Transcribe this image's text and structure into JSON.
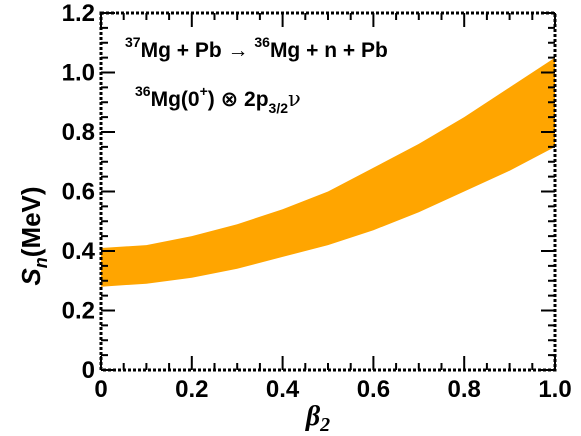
{
  "chart_data": {
    "type": "area",
    "title": "",
    "xlabel": "β",
    "xlabel_sub": "2",
    "ylabel_main": "S",
    "ylabel_sub": "n",
    "ylabel_unit": "(MeV)",
    "xlim": [
      0,
      1.0
    ],
    "ylim": [
      0,
      1.2
    ],
    "xticks": [
      "0",
      "0.2",
      "0.4",
      "0.6",
      "0.8",
      "1.0"
    ],
    "yticks": [
      "0",
      "0.2",
      "0.4",
      "0.6",
      "0.8",
      "1.0",
      "1.2"
    ],
    "band_color": "#FFA500",
    "x": [
      0.0,
      0.1,
      0.2,
      0.3,
      0.4,
      0.5,
      0.6,
      0.7,
      0.8,
      0.9,
      1.0
    ],
    "lower": [
      0.28,
      0.29,
      0.31,
      0.34,
      0.38,
      0.42,
      0.47,
      0.53,
      0.6,
      0.67,
      0.75
    ],
    "upper": [
      0.41,
      0.42,
      0.45,
      0.49,
      0.54,
      0.6,
      0.68,
      0.76,
      0.85,
      0.95,
      1.05
    ],
    "annotations": {
      "reaction": {
        "sup1": "37",
        "part1": "Mg + Pb ",
        "arrow": "→",
        "sup2": "36",
        "part2": "Mg + n + Pb"
      },
      "config": {
        "sup1": "36",
        "part1": "Mg(0",
        "sup_plus": "+",
        "part2": ") ",
        "otimes": "⊗",
        "part3": " 2p",
        "sub": "3/2",
        "nu": "ν"
      }
    }
  }
}
